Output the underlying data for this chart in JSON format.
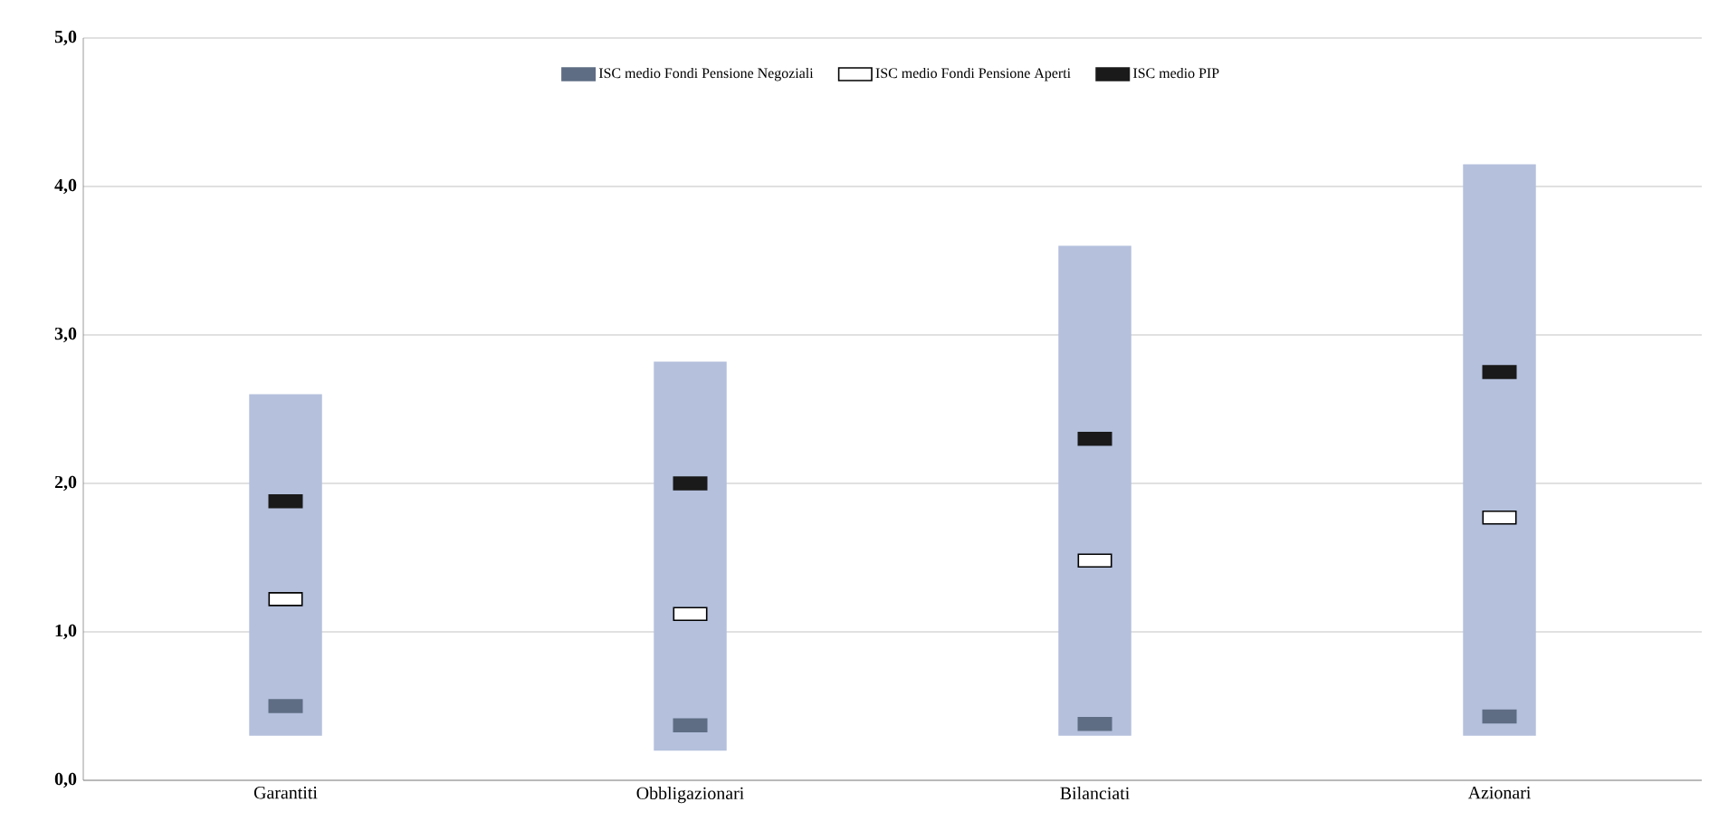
{
  "chart_data": {
    "type": "scatter",
    "categories": [
      "Garantiti",
      "Obbligazionari",
      "Bilanciati",
      "Azionari"
    ],
    "ylim": [
      0,
      5
    ],
    "yticks": [
      {
        "value": 0,
        "label": "0,0"
      },
      {
        "value": 1,
        "label": "1,0"
      },
      {
        "value": 2,
        "label": "2,0"
      },
      {
        "value": 3,
        "label": "3,0"
      },
      {
        "value": 4,
        "label": "4,0"
      },
      {
        "value": 5,
        "label": "5,0"
      }
    ],
    "grid": "y",
    "legend": "top",
    "marker": "square",
    "series": [
      {
        "type": "bar",
        "color": "#b4c0dc",
        "values": [
          2.3,
          2.62,
          3.3,
          3.85
        ],
        "base": [
          0.3,
          0.2,
          0.3,
          0.3
        ]
      },
      {
        "name": "ISC medio Fondi Pensione Negoziali",
        "color": "#5f6d84",
        "values": [
          0.5,
          0.37,
          0.38,
          0.43
        ]
      },
      {
        "name": "ISC medio Fondi Pensione Aperti",
        "color": "#ffffff",
        "values": [
          1.22,
          1.12,
          1.48,
          1.77
        ]
      },
      {
        "name": "ISC medio PIP",
        "color": "#1a1a1a",
        "values": [
          1.88,
          2.0,
          2.3,
          2.75
        ]
      }
    ]
  }
}
